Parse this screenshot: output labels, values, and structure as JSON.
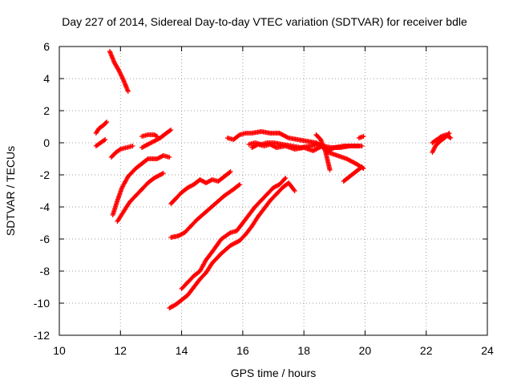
{
  "chart_data": {
    "type": "scatter",
    "title": "Day 227 of 2014, Sidereal Day-to-day VTEC variation (SDTVAR) for receiver bdle",
    "xlabel": "GPS time / hours",
    "ylabel": "SDTVAR / TECUs",
    "xlim": [
      10,
      24
    ],
    "ylim": [
      -12,
      6
    ],
    "xticks": [
      10,
      12,
      14,
      16,
      18,
      20,
      22,
      24
    ],
    "yticks": [
      -12,
      -10,
      -8,
      -6,
      -4,
      -2,
      0,
      2,
      4,
      6
    ],
    "grid": true,
    "marker": "+",
    "color": "#ff0000",
    "series": [
      {
        "points": [
          [
            11.65,
            5.7
          ],
          [
            11.8,
            5.0
          ],
          [
            11.95,
            4.5
          ],
          [
            12.1,
            3.9
          ],
          [
            12.25,
            3.2
          ]
        ]
      },
      {
        "points": [
          [
            11.2,
            0.6
          ],
          [
            11.3,
            0.9
          ],
          [
            11.45,
            1.1
          ],
          [
            11.55,
            1.3
          ]
        ]
      },
      {
        "points": [
          [
            11.2,
            -0.2
          ],
          [
            11.35,
            0.0
          ],
          [
            11.5,
            0.2
          ]
        ]
      },
      {
        "points": [
          [
            11.7,
            -0.9
          ],
          [
            11.85,
            -0.6
          ],
          [
            12.0,
            -0.4
          ],
          [
            12.2,
            -0.3
          ],
          [
            12.4,
            -0.2
          ]
        ]
      },
      {
        "points": [
          [
            11.75,
            -4.5
          ],
          [
            11.9,
            -3.6
          ],
          [
            12.05,
            -2.8
          ],
          [
            12.25,
            -2.1
          ],
          [
            12.5,
            -1.6
          ],
          [
            12.7,
            -1.3
          ],
          [
            12.9,
            -1.0
          ],
          [
            13.2,
            -1.0
          ],
          [
            13.4,
            -0.8
          ],
          [
            13.6,
            -0.9
          ]
        ]
      },
      {
        "points": [
          [
            11.9,
            -4.9
          ],
          [
            12.1,
            -4.3
          ],
          [
            12.3,
            -3.7
          ],
          [
            12.5,
            -3.3
          ],
          [
            12.7,
            -2.9
          ],
          [
            12.9,
            -2.5
          ],
          [
            13.1,
            -2.2
          ],
          [
            13.4,
            -1.9
          ]
        ]
      },
      {
        "points": [
          [
            12.7,
            0.4
          ],
          [
            12.9,
            0.5
          ],
          [
            13.1,
            0.5
          ],
          [
            13.2,
            0.4
          ]
        ]
      },
      {
        "points": [
          [
            12.7,
            -0.3
          ],
          [
            12.9,
            -0.1
          ],
          [
            13.1,
            0.1
          ],
          [
            13.3,
            0.3
          ],
          [
            13.5,
            0.6
          ],
          [
            13.65,
            0.8
          ]
        ]
      },
      {
        "points": [
          [
            13.65,
            -3.8
          ],
          [
            13.8,
            -3.5
          ],
          [
            14.0,
            -3.1
          ],
          [
            14.2,
            -2.8
          ],
          [
            14.4,
            -2.6
          ],
          [
            14.6,
            -2.3
          ],
          [
            14.8,
            -2.5
          ],
          [
            15.0,
            -2.3
          ],
          [
            15.2,
            -2.4
          ],
          [
            15.4,
            -2.1
          ],
          [
            15.6,
            -1.8
          ]
        ]
      },
      {
        "points": [
          [
            13.65,
            -5.9
          ],
          [
            13.9,
            -5.8
          ],
          [
            14.1,
            -5.6
          ],
          [
            14.3,
            -5.2
          ],
          [
            14.5,
            -4.8
          ],
          [
            14.8,
            -4.3
          ],
          [
            15.1,
            -3.8
          ],
          [
            15.4,
            -3.3
          ],
          [
            15.7,
            -2.9
          ],
          [
            15.9,
            -2.6
          ]
        ]
      },
      {
        "points": [
          [
            13.6,
            -10.3
          ],
          [
            13.8,
            -10.1
          ],
          [
            14.0,
            -9.8
          ],
          [
            14.2,
            -9.5
          ],
          [
            14.4,
            -9.0
          ],
          [
            14.6,
            -8.5
          ],
          [
            14.8,
            -8.1
          ],
          [
            15.0,
            -7.5
          ],
          [
            15.3,
            -6.9
          ],
          [
            15.6,
            -6.4
          ],
          [
            15.9,
            -6.1
          ],
          [
            16.1,
            -5.7
          ],
          [
            16.3,
            -5.2
          ],
          [
            16.5,
            -4.6
          ],
          [
            16.7,
            -4.1
          ],
          [
            16.9,
            -3.6
          ],
          [
            17.1,
            -3.2
          ],
          [
            17.3,
            -2.8
          ],
          [
            17.5,
            -2.5
          ],
          [
            17.7,
            -3.0
          ]
        ]
      },
      {
        "points": [
          [
            14.0,
            -9.1
          ],
          [
            14.2,
            -8.7
          ],
          [
            14.4,
            -8.3
          ],
          [
            14.6,
            -8.0
          ],
          [
            14.8,
            -7.3
          ],
          [
            15.0,
            -6.8
          ],
          [
            15.3,
            -6.0
          ],
          [
            15.6,
            -5.6
          ],
          [
            15.8,
            -5.5
          ],
          [
            16.0,
            -5.0
          ],
          [
            16.2,
            -4.5
          ],
          [
            16.4,
            -4.0
          ],
          [
            16.6,
            -3.6
          ],
          [
            16.8,
            -3.2
          ],
          [
            17.0,
            -2.8
          ],
          [
            17.2,
            -2.6
          ],
          [
            17.4,
            -2.2
          ]
        ]
      },
      {
        "points": [
          [
            15.5,
            0.3
          ],
          [
            15.7,
            0.2
          ],
          [
            15.9,
            0.5
          ],
          [
            16.1,
            0.6
          ],
          [
            16.3,
            0.6
          ],
          [
            16.6,
            0.7
          ],
          [
            16.9,
            0.6
          ],
          [
            17.2,
            0.6
          ],
          [
            17.5,
            0.3
          ],
          [
            17.8,
            0.2
          ],
          [
            18.1,
            0.1
          ],
          [
            18.4,
            0.0
          ],
          [
            18.6,
            -0.2
          ],
          [
            18.8,
            -0.5
          ],
          [
            19.0,
            -0.3
          ],
          [
            19.3,
            -0.2
          ],
          [
            19.6,
            -0.2
          ],
          [
            19.9,
            -0.2
          ]
        ]
      },
      {
        "points": [
          [
            16.3,
            -0.3
          ],
          [
            16.5,
            -0.1
          ],
          [
            16.7,
            -0.2
          ],
          [
            16.9,
            -0.1
          ],
          [
            17.1,
            -0.3
          ],
          [
            17.4,
            -0.2
          ],
          [
            17.7,
            -0.4
          ],
          [
            18.0,
            -0.3
          ],
          [
            18.3,
            -0.5
          ],
          [
            18.6,
            -0.2
          ],
          [
            18.9,
            -0.3
          ],
          [
            19.2,
            -0.3
          ],
          [
            19.5,
            -0.2
          ],
          [
            19.8,
            -0.2
          ]
        ]
      },
      {
        "points": [
          [
            16.2,
            -0.1
          ],
          [
            16.4,
            0.0
          ],
          [
            16.6,
            -0.1
          ],
          [
            16.8,
            0.0
          ],
          [
            17.0,
            0.0
          ],
          [
            17.3,
            -0.1
          ],
          [
            17.6,
            -0.2
          ],
          [
            17.9,
            -0.3
          ],
          [
            18.2,
            -0.2
          ],
          [
            18.5,
            -0.1
          ],
          [
            18.8,
            -0.6
          ],
          [
            19.1,
            -0.8
          ],
          [
            19.4,
            -1.0
          ],
          [
            19.7,
            -1.3
          ],
          [
            19.95,
            -1.6
          ]
        ]
      },
      {
        "points": [
          [
            18.4,
            0.5
          ],
          [
            18.55,
            0.2
          ],
          [
            18.7,
            -0.5
          ],
          [
            18.8,
            -1.3
          ],
          [
            18.85,
            -1.7
          ]
        ]
      },
      {
        "points": [
          [
            19.3,
            -2.4
          ],
          [
            19.5,
            -2.1
          ],
          [
            19.7,
            -1.8
          ],
          [
            19.9,
            -1.5
          ]
        ]
      },
      {
        "points": [
          [
            19.8,
            0.3
          ],
          [
            19.95,
            0.4
          ]
        ]
      },
      {
        "points": [
          [
            22.2,
            -0.6
          ],
          [
            22.3,
            -0.2
          ],
          [
            22.45,
            0.1
          ],
          [
            22.6,
            0.3
          ],
          [
            22.75,
            0.6
          ]
        ]
      },
      {
        "points": [
          [
            22.2,
            0.0
          ],
          [
            22.35,
            0.2
          ],
          [
            22.5,
            0.4
          ],
          [
            22.65,
            0.5
          ],
          [
            22.8,
            0.3
          ]
        ]
      }
    ]
  }
}
